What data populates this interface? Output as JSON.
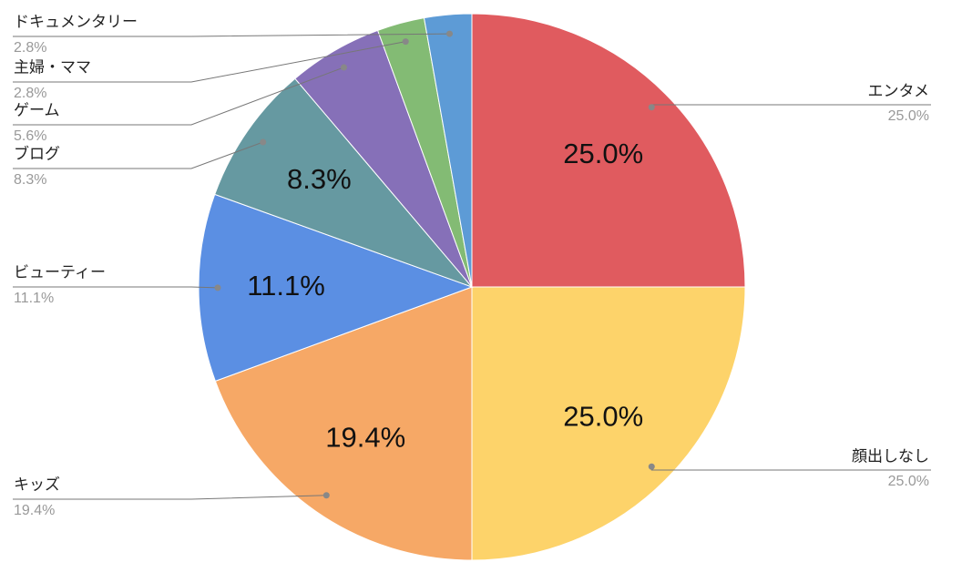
{
  "chart_data": {
    "type": "pie",
    "categories": [
      "エンタメ",
      "顔出しなし",
      "キッズ",
      "ビューティー",
      "ブログ",
      "ゲーム",
      "主婦・ママ",
      "ドキュメンタリー"
    ],
    "values": [
      25.0,
      25.0,
      19.4,
      11.1,
      8.3,
      5.6,
      2.8,
      2.8
    ],
    "value_labels": [
      "25.0%",
      "25.0%",
      "19.4%",
      "11.1%",
      "8.3%",
      "5.6%",
      "2.8%",
      "2.8%"
    ],
    "colors": [
      "#e05b5f",
      "#fdd36a",
      "#f6a866",
      "#5b8fe3",
      "#6699a1",
      "#8670b8",
      "#83bb74",
      "#5d9bd6"
    ]
  }
}
